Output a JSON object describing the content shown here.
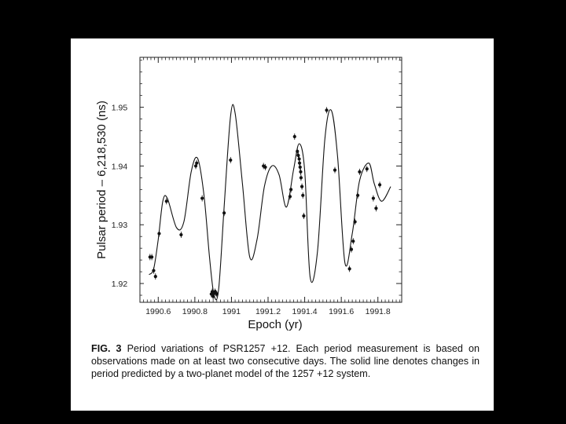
{
  "chart_data": {
    "type": "line",
    "title": "",
    "xlabel": "Epoch (yr)",
    "ylabel": "Pulsar period – 6,218,530 (ns)",
    "xlim": [
      1990.5,
      1991.93
    ],
    "ylim": [
      1.9168,
      1.9585
    ],
    "x_ticks": [
      1990.6,
      1990.8,
      1991,
      1991.2,
      1991.4,
      1991.6,
      1991.8
    ],
    "x_tick_labels": [
      "1990.6",
      "1990.8",
      "1991",
      "1991.2",
      "1991.4",
      "1991.6",
      "1991.8"
    ],
    "y_ticks": [
      1.92,
      1.93,
      1.94,
      1.95
    ],
    "y_tick_labels": [
      "1.92",
      "1.93",
      "1.94",
      "1.95"
    ],
    "grid": false,
    "series": [
      {
        "kind": "model-curve",
        "x": [
          1990.55,
          1990.575,
          1990.6,
          1990.625,
          1990.65,
          1990.7,
          1990.74,
          1990.78,
          1990.815,
          1990.85,
          1990.88,
          1990.905,
          1990.93,
          1990.96,
          1990.995,
          1991.02,
          1991.06,
          1991.1,
          1991.14,
          1991.18,
          1991.22,
          1991.26,
          1991.3,
          1991.34,
          1991.37,
          1991.4,
          1991.43,
          1991.47,
          1991.51,
          1991.545,
          1991.58,
          1991.62,
          1991.66,
          1991.7,
          1991.75,
          1991.78,
          1991.82,
          1991.87
        ],
        "y": [
          1.9215,
          1.9225,
          1.9275,
          1.934,
          1.9345,
          1.9295,
          1.9305,
          1.939,
          1.9413,
          1.935,
          1.9245,
          1.918,
          1.919,
          1.933,
          1.9485,
          1.949,
          1.937,
          1.9245,
          1.9275,
          1.9365,
          1.94,
          1.9385,
          1.933,
          1.9395,
          1.9438,
          1.9392,
          1.921,
          1.9255,
          1.9445,
          1.9495,
          1.9415,
          1.9235,
          1.9285,
          1.9375,
          1.9405,
          1.937,
          1.934,
          1.9365
        ]
      },
      {
        "kind": "measurements",
        "x": [
          1990.555,
          1990.565,
          1990.575,
          1990.585,
          1990.605,
          1990.645,
          1990.725,
          1990.805,
          1990.81,
          1990.84,
          1990.89,
          1990.895,
          1990.9,
          1990.905,
          1990.91,
          1990.915,
          1990.92,
          1990.96,
          1990.995,
          1991.175,
          1991.185,
          1991.32,
          1991.325,
          1991.345,
          1991.36,
          1991.365,
          1991.37,
          1991.372,
          1991.375,
          1991.378,
          1991.38,
          1991.385,
          1991.39,
          1991.395,
          1991.52,
          1991.565,
          1991.645,
          1991.655,
          1991.665,
          1991.675,
          1991.69,
          1991.7,
          1991.74,
          1991.775,
          1991.79,
          1991.81
        ],
        "y": [
          1.9245,
          1.9245,
          1.9222,
          1.9212,
          1.9285,
          1.934,
          1.9283,
          1.94,
          1.9405,
          1.9345,
          1.9182,
          1.9186,
          1.9178,
          1.9183,
          1.9186,
          1.9184,
          1.9182,
          1.932,
          1.941,
          1.94,
          1.9398,
          1.9348,
          1.936,
          1.945,
          1.9425,
          1.9418,
          1.9412,
          1.9405,
          1.9398,
          1.939,
          1.938,
          1.9365,
          1.935,
          1.9315,
          1.9495,
          1.9393,
          1.9225,
          1.9258,
          1.9272,
          1.9305,
          1.935,
          1.939,
          1.9395,
          1.9345,
          1.9328,
          1.9368
        ]
      }
    ]
  },
  "caption": {
    "label": "FIG. 3",
    "text": "Period variations of PSR1257 +12. Each period measurement is based on observations made on at least two consecutive days. The solid line denotes changes in period predicted by a two-planet model of the 1257 +12 system."
  },
  "colors": {
    "background": "#000000",
    "card": "#ffffff",
    "ink": "#111111"
  }
}
